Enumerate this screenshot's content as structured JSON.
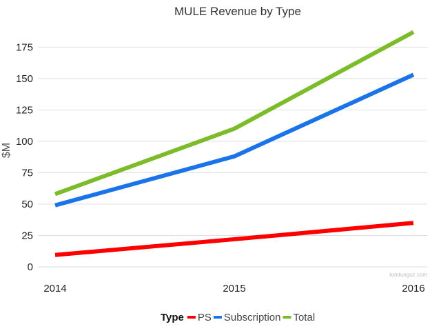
{
  "chart_data": {
    "type": "line",
    "title": "MULE Revenue by Type",
    "xlabel": "",
    "ylabel": "$M",
    "categories": [
      "2014",
      "2015",
      "2016"
    ],
    "ylim": [
      0,
      187.5
    ],
    "yticks": [
      0,
      25,
      50,
      75,
      100,
      125,
      150,
      175
    ],
    "grid": true,
    "series": [
      {
        "name": "PS",
        "color": "#ff0000",
        "values": [
          9.5,
          22,
          35
        ]
      },
      {
        "name": "Subscription",
        "color": "#1a73e8",
        "values": [
          49,
          88,
          153
        ]
      },
      {
        "name": "Total",
        "color": "#7cbb2a",
        "values": [
          58,
          110,
          187
        ]
      }
    ],
    "legend": {
      "title": "Type",
      "placement": "bottom-center"
    },
    "watermark": "tomtunguz.com"
  }
}
